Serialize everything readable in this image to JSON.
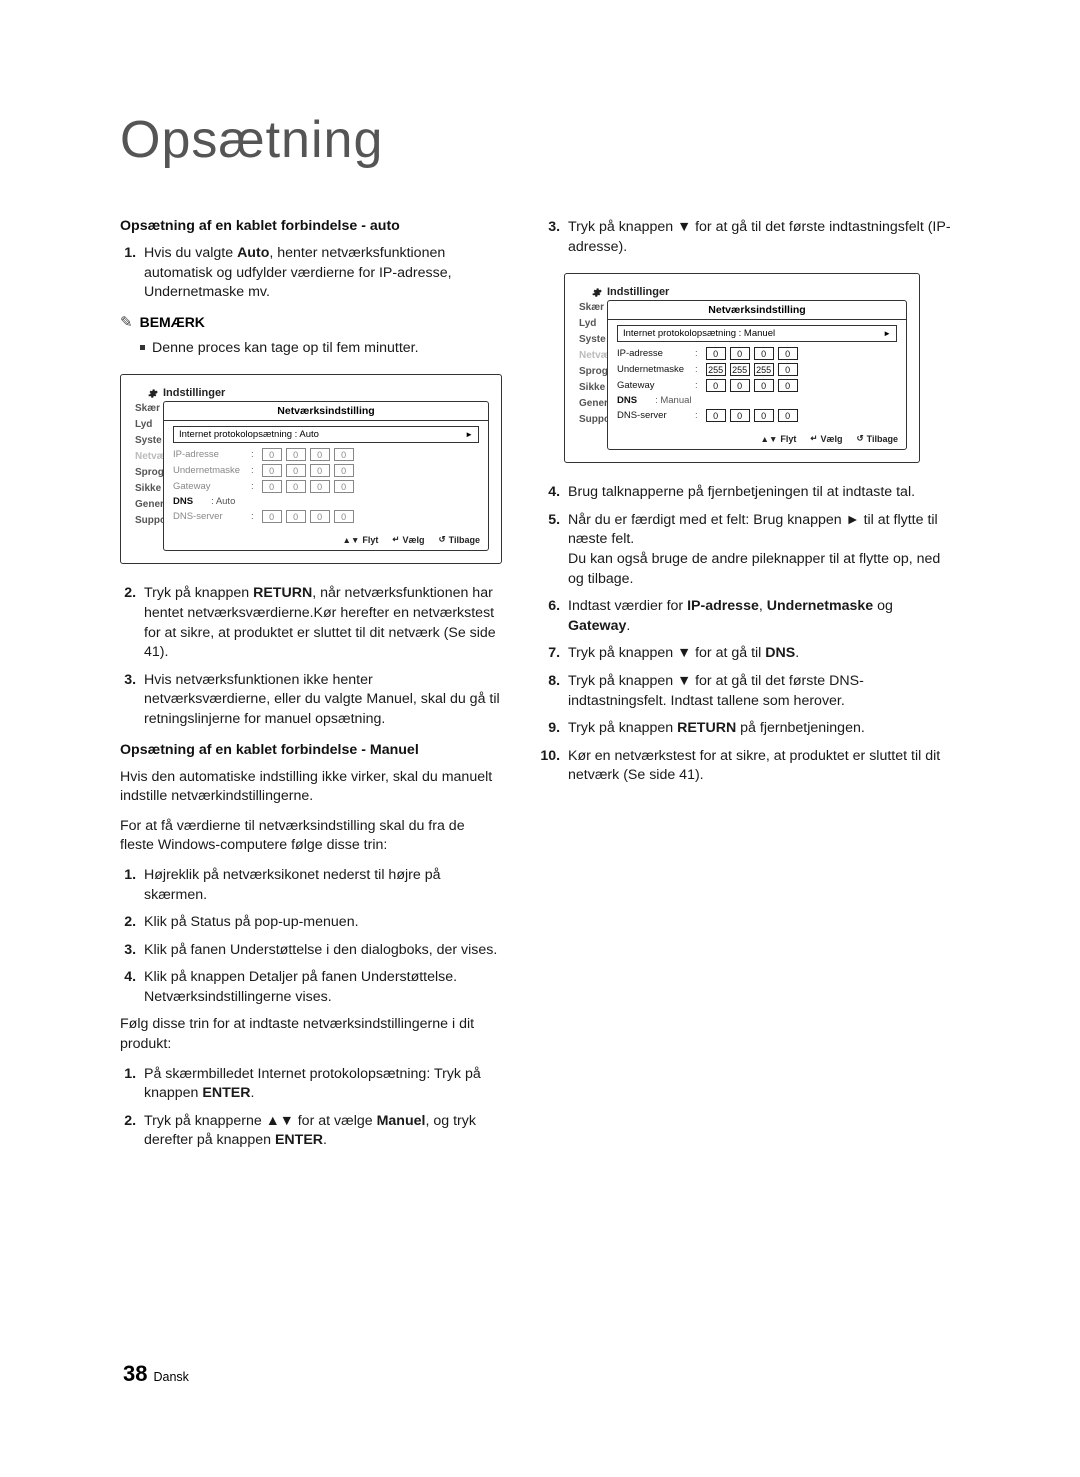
{
  "page_title": "Opsætning",
  "footer": {
    "page_number": "38",
    "language": "Dansk"
  },
  "note_label": "BEMÆRK",
  "left": {
    "h_auto": "Opsætning af en kablet forbindelse - auto",
    "auto_step1_pre": "Hvis du valgte ",
    "auto_step1_bold": "Auto",
    "auto_step1_post": ", henter netværksfunktionen automatisk og udfylder værdierne for IP-adresse, Undernetmaske mv.",
    "note1": "Denne proces kan tage op til fem minutter.",
    "auto_step2_pre": "Tryk på knappen ",
    "auto_step2_bold": "RETURN",
    "auto_step2_post": ", når netværksfunktionen har hentet netværksværdierne.Kør herefter en netværkstest for at sikre, at produktet er sluttet til dit netværk (Se side 41).",
    "auto_step3": "Hvis netværksfunktionen ikke henter netværksværdierne, eller du valgte Manuel, skal du gå til retningslinjerne for manuel opsætning.",
    "h_manual": "Opsætning af en kablet forbindelse - Manuel",
    "manual_p1": "Hvis den automatiske indstilling ikke virker, skal du manuelt indstille netværkindstillingerne.",
    "manual_p2": "For at få værdierne til netværksindstilling skal du fra de fleste Windows-computere følge disse trin:",
    "m_steps_a": [
      "Højreklik på netværksikonet nederst til højre på skærmen.",
      "Klik på Status på pop-up-menuen.",
      "Klik på fanen Understøttelse i den dialogboks, der vises.",
      "Klik på knappen Detaljer på fanen Understøttelse. Netværksindstillingerne vises."
    ],
    "manual_p3": "Følg disse trin for at indtaste netværksindstillingerne i dit produkt:",
    "m_b1_pre": "På skærmbilledet Internet protokolopsætning: Tryk på knappen ",
    "m_b1_bold": "ENTER",
    "m_b1_post": ".",
    "m_b2_pre": "Tryk på knapperne ▲▼ for at vælge ",
    "m_b2_bold1": "Manuel",
    "m_b2_mid": ", og tryk derefter på knappen ",
    "m_b2_bold2": "ENTER",
    "m_b2_post": "."
  },
  "right": {
    "r3": "Tryk på knappen ▼ for at gå til det første indtastningsfelt (IP-adresse).",
    "r4": "Brug talknapperne på fjernbetjeningen til at indtaste tal.",
    "r5a": "Når du er færdigt med et felt: Brug knappen ► til at flytte til næste felt.",
    "r5b": "Du kan også bruge de andre pileknapper til at flytte op, ned og tilbage.",
    "r6_pre": "Indtast værdier for ",
    "r6_b1": "IP-adresse",
    "r6_mid": ", ",
    "r6_b2": "Undernetmaske",
    "r6_mid2": " og ",
    "r6_b3": "Gateway",
    "r6_post": ".",
    "r7_pre": "Tryk på knappen ▼ for at gå til ",
    "r7_b": "DNS",
    "r7_post": ".",
    "r8": "Tryk på knappen ▼ for at gå til det første DNS-indtastningsfelt. Indtast tallene som herover.",
    "r9_pre": "Tryk på knappen ",
    "r9_b": "RETURN",
    "r9_post": " på fjernbetjeningen.",
    "r10": "Kør en netværkstest for at sikre, at produktet er sluttet til dit netværk (Se side 41)."
  },
  "fig1": {
    "header": "Indstillinger",
    "sidebar": [
      "Skær",
      "Lyd",
      "Syste",
      "Netvæ",
      "Sprog",
      "Sikke",
      "Gener",
      "Suppo"
    ],
    "panel_title": "Netværksindstilling",
    "select_label": "Internet protokolopsætning : Auto",
    "rows": [
      {
        "label": "IP-adresse",
        "values": [
          "0",
          "0",
          "0",
          "0"
        ],
        "faded": true
      },
      {
        "label": "Undernetmaske",
        "values": [
          "0",
          "0",
          "0",
          "0"
        ],
        "faded": true
      },
      {
        "label": "Gateway",
        "values": [
          "0",
          "0",
          "0",
          "0"
        ],
        "faded": true
      }
    ],
    "dns_label": "DNS",
    "dns_value": ": Auto",
    "dns_server": {
      "label": "DNS-server",
      "values": [
        "0",
        "0",
        "0",
        "0"
      ],
      "faded": true
    },
    "footer": {
      "move": "Flyt",
      "select": "Vælg",
      "back": "Tilbage"
    }
  },
  "fig2": {
    "header": "Indstillinger",
    "sidebar": [
      "Skær",
      "Lyd",
      "Syste",
      "Netvæ",
      "Sprog",
      "Sikke",
      "Gener",
      "Suppo"
    ],
    "panel_title": "Netværksindstilling",
    "select_label": "Internet protokolopsætning : Manuel",
    "rows": [
      {
        "label": "IP-adresse",
        "values": [
          "0",
          "0",
          "0",
          "0"
        ],
        "faded": false
      },
      {
        "label": "Undernetmaske",
        "values": [
          "255",
          "255",
          "255",
          "0"
        ],
        "faded": false
      },
      {
        "label": "Gateway",
        "values": [
          "0",
          "0",
          "0",
          "0"
        ],
        "faded": false
      }
    ],
    "dns_label": "DNS",
    "dns_value": ": Manual",
    "dns_server": {
      "label": "DNS-server",
      "values": [
        "0",
        "0",
        "0",
        "0"
      ],
      "faded": false
    },
    "footer": {
      "move": "Flyt",
      "select": "Vælg",
      "back": "Tilbage"
    }
  }
}
